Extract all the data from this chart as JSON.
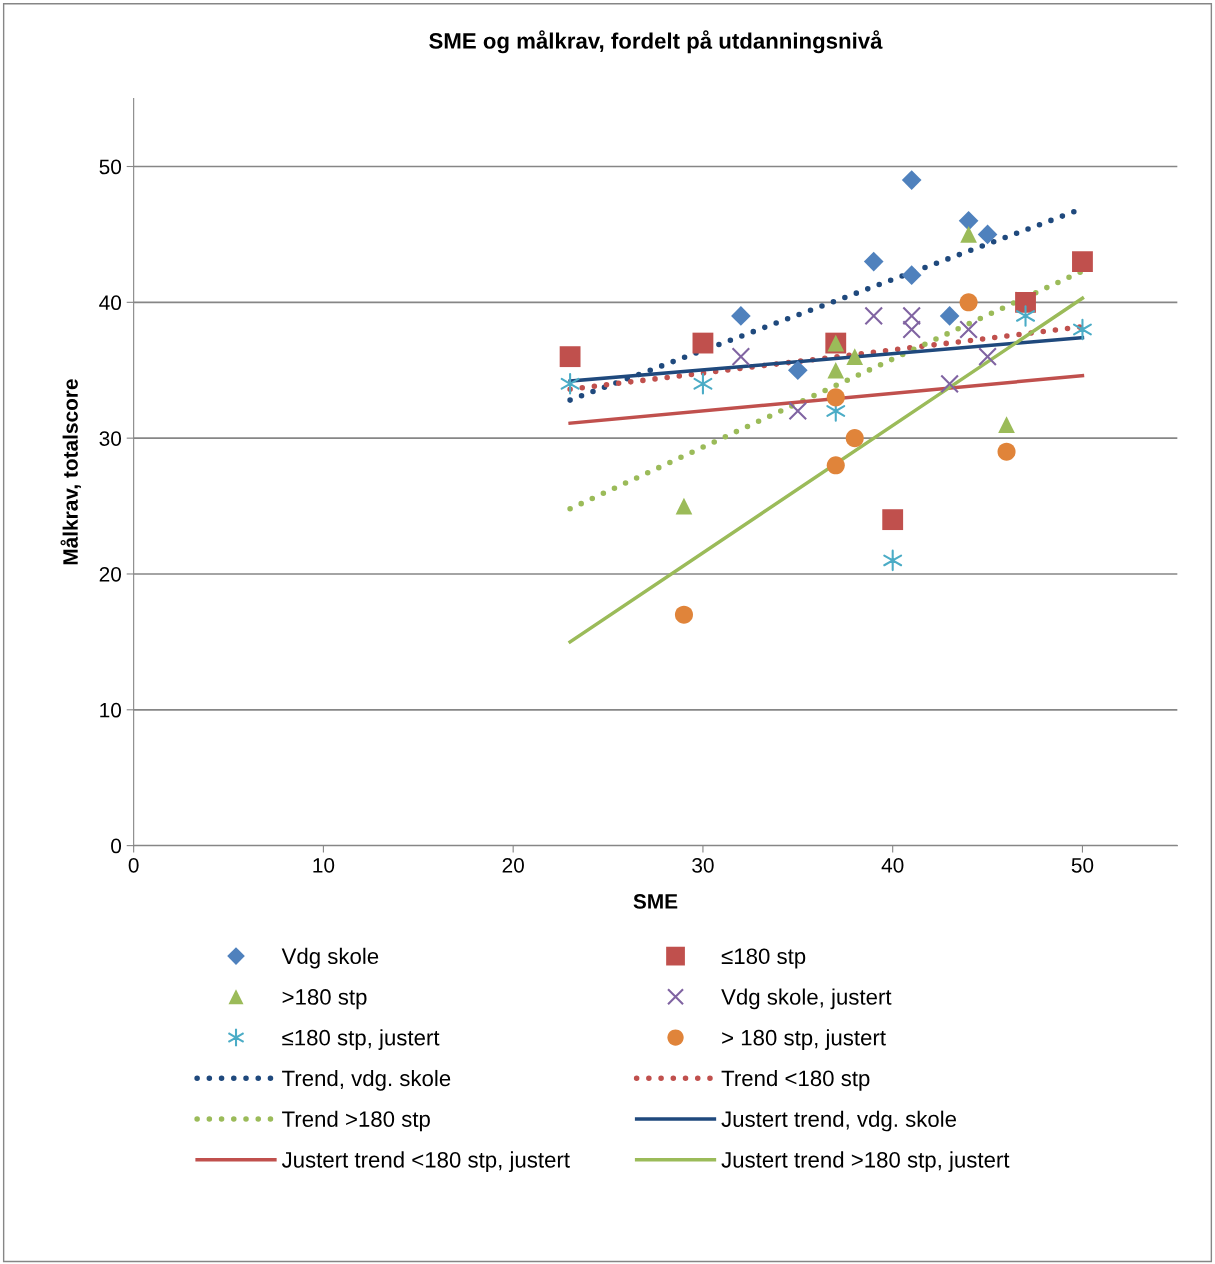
{
  "chart_data": {
    "type": "scatter",
    "title": "SME og målkrav, fordelt på utdanningsnivå",
    "xlabel": "SME",
    "ylabel": "Målkrav, totalscore",
    "xlim": [
      0,
      55
    ],
    "xticks": [
      0,
      10,
      20,
      30,
      40,
      50
    ],
    "ylim": [
      0,
      55
    ],
    "yticks": [
      0,
      10,
      20,
      30,
      40,
      50
    ],
    "grid": "y",
    "legend": "bottom",
    "series": [
      {
        "name": "Vdg skole",
        "type": "scatter",
        "marker": "diamond",
        "color": "#4f81bd",
        "x": [
          32,
          35,
          39,
          41,
          41,
          43,
          44,
          45
        ],
        "values": [
          39,
          35,
          43,
          49,
          42,
          39,
          46,
          45
        ]
      },
      {
        "name": "≤180 stp",
        "type": "scatter",
        "marker": "square",
        "color": "#c0504d",
        "x": [
          23,
          30,
          37,
          40,
          47,
          50
        ],
        "values": [
          36,
          37,
          37,
          24,
          40,
          43
        ]
      },
      {
        "name": ">180 stp",
        "type": "scatter",
        "marker": "triangle",
        "color": "#9bbb59",
        "x": [
          29,
          37,
          37,
          38,
          44,
          46
        ],
        "values": [
          25,
          37,
          35,
          36,
          45,
          31
        ]
      },
      {
        "name": "Vdg skole, justert",
        "type": "scatter",
        "marker": "cross",
        "color": "#8064a2",
        "x": [
          32,
          35,
          39,
          41,
          41,
          43,
          44,
          45
        ],
        "values": [
          36,
          32,
          39,
          39,
          38,
          34,
          38,
          36
        ]
      },
      {
        "name": "≤180 stp, justert",
        "type": "scatter",
        "color": "#4bacc6",
        "x": [
          23,
          30,
          37,
          40,
          47,
          50
        ],
        "values": [
          34,
          34,
          32,
          21,
          39,
          38
        ]
      },
      {
        "name": "> 180 stp, justert",
        "type": "scatter",
        "marker": "circle",
        "color": "#e0843a",
        "x": [
          29,
          37,
          37,
          38,
          44,
          46
        ],
        "values": [
          17,
          33,
          28,
          30,
          40,
          29
        ]
      },
      {
        "name": "Trend, vdg. skole",
        "type": "line",
        "line_style": "dotted",
        "color": "#1f497d",
        "x": [
          23,
          50
        ],
        "values": [
          32.8,
          46.9
        ]
      },
      {
        "name": "Trend <180 stp",
        "type": "line",
        "line_style": "dotted",
        "color": "#c0504d",
        "x": [
          23,
          50
        ],
        "values": [
          33.6,
          38.2
        ]
      },
      {
        "name": "Trend >180 stp",
        "type": "line",
        "line_style": "dotted",
        "color": "#9bbb59",
        "x": [
          23,
          50
        ],
        "values": [
          24.8,
          42.3
        ]
      },
      {
        "name": "Justert trend, vdg. skole",
        "type": "line",
        "line_style": "solid",
        "color": "#1f497d",
        "x": [
          23,
          50
        ],
        "values": [
          34.2,
          37.4
        ]
      },
      {
        "name": "Justert trend <180 stp, justert",
        "type": "line",
        "line_style": "solid",
        "color": "#c0504d",
        "x": [
          23,
          50
        ],
        "values": [
          31.1,
          34.6
        ]
      },
      {
        "name": "Justert trend >180 stp, justert",
        "type": "line",
        "line_style": "solid",
        "color": "#9bbb59",
        "x": [
          23,
          50
        ],
        "values": [
          15.0,
          40.3
        ]
      }
    ]
  }
}
